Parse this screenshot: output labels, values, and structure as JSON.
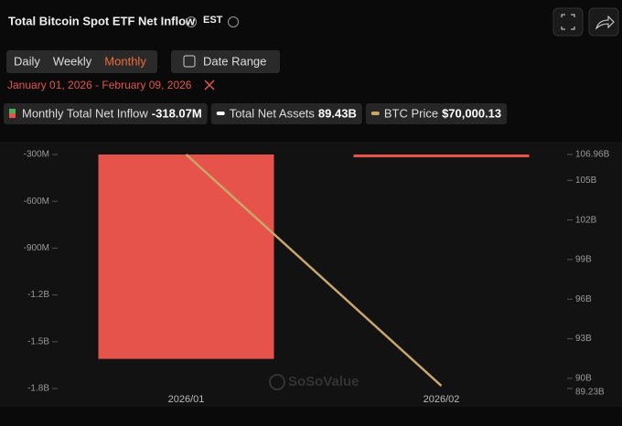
{
  "header": {
    "title": "Total Bitcoin Spot ETF Net Inflow",
    "timezone": "EST"
  },
  "tabs": [
    "Daily",
    "Weekly",
    "Monthly"
  ],
  "active_tab": 2,
  "date_range_button": "Date Range",
  "date_range": "January 01, 2026 - February 09, 2026",
  "legend": [
    {
      "label": "Monthly Total Net Inflow",
      "value": "-318.07M"
    },
    {
      "label": "Total Net Assets",
      "value": "89.43B"
    },
    {
      "label": "BTC Price",
      "value": "$70,000.13"
    }
  ],
  "watermark": "SoSoValue",
  "chart_data": {
    "type": "bar_line",
    "categories": [
      "2026/01",
      "2026/02"
    ],
    "series": [
      {
        "name": "Monthly Total Net Inflow",
        "type": "bar",
        "color": "#e5534b",
        "values": [
          -1610000000,
          -318070000
        ]
      },
      {
        "name": "Total Net Assets",
        "type": "line",
        "axis": "y2",
        "color": "#c9a66b",
        "values": [
          106.96,
          89.43
        ]
      }
    ],
    "ylim": [
      -1800000000,
      -300000000
    ],
    "yticks": [
      {
        "value": -300000000,
        "label": "-300M"
      },
      {
        "value": -600000000,
        "label": "-600M"
      },
      {
        "value": -900000000,
        "label": "-900M"
      },
      {
        "value": -1200000000,
        "label": "-1.2B"
      },
      {
        "value": -1500000000,
        "label": "-1.5B"
      },
      {
        "value": -1800000000,
        "label": "-1.8B"
      }
    ],
    "y2lim": [
      89.23,
      106.96
    ],
    "y2ticks": [
      {
        "value": 106.96,
        "label": "106.96B"
      },
      {
        "value": 105,
        "label": "105B"
      },
      {
        "value": 102,
        "label": "102B"
      },
      {
        "value": 99,
        "label": "99B"
      },
      {
        "value": 96,
        "label": "96B"
      },
      {
        "value": 93,
        "label": "93B"
      },
      {
        "value": 90,
        "label": "90B"
      },
      {
        "value": 89.23,
        "label": "89.23B"
      }
    ]
  }
}
